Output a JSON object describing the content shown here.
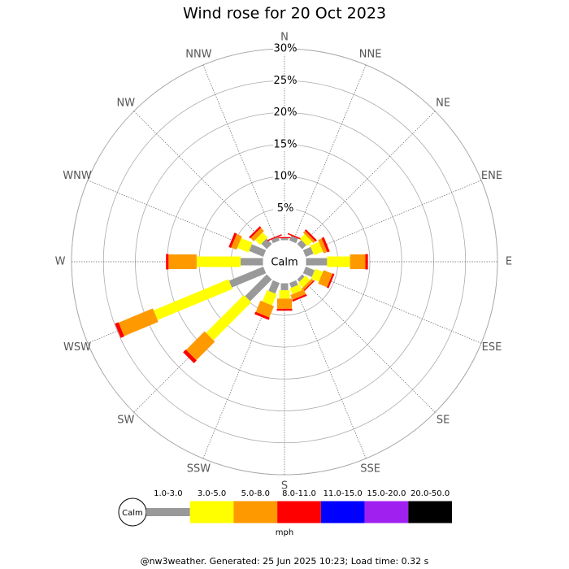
{
  "chart_data": {
    "type": "windrose",
    "title": "Wind rose for 20 Oct 2023",
    "categories": [
      "N",
      "NNE",
      "NE",
      "ENE",
      "E",
      "ESE",
      "SE",
      "SSE",
      "S",
      "SSW",
      "SW",
      "WSW",
      "W",
      "WNW",
      "NW",
      "NNW"
    ],
    "center_label": "Calm",
    "unit_label": "mph",
    "footer": "@nw3weather. Generated: 25 Jun 2025 10:23; Load time: 0.32 s",
    "ylim": [
      0,
      30
    ],
    "yticks": [
      {
        "value": 5,
        "label": "5%"
      },
      {
        "value": 10,
        "label": "10%"
      },
      {
        "value": 15,
        "label": "15%"
      },
      {
        "value": 20,
        "label": "20%"
      },
      {
        "value": 25,
        "label": "25%"
      },
      {
        "value": 30,
        "label": "30%"
      }
    ],
    "series": [
      {
        "name": "1.0-3.0",
        "color": "#999999",
        "values": [
          0.3,
          0.8,
          0.9,
          1.3,
          3.3,
          1.5,
          0.5,
          0.8,
          1.1,
          1.8,
          4.8,
          5.8,
          3.5,
          2.4,
          1.2,
          0.6
        ]
      },
      {
        "name": "3.0-5.0",
        "color": "#ffff00",
        "values": [
          0,
          0,
          1.0,
          1.5,
          3.6,
          1.3,
          1.0,
          1.0,
          1.3,
          1.9,
          8.4,
          12.7,
          6.9,
          1.9,
          1.1,
          0
        ]
      },
      {
        "name": "5.0-8.0",
        "color": "#ff9900",
        "values": [
          0,
          0,
          0.4,
          0.6,
          2.4,
          1.5,
          0.4,
          0.8,
          1.6,
          1.9,
          4.1,
          5.8,
          4.4,
          0.9,
          0.7,
          0
        ]
      },
      {
        "name": "8.0-11.0",
        "color": "#ff0000",
        "values": [
          0.2,
          0.2,
          0.3,
          0.4,
          0.4,
          0.3,
          0.2,
          0.3,
          0.3,
          0.4,
          0.6,
          0.6,
          0.4,
          0.4,
          0.3,
          0.2
        ]
      },
      {
        "name": "11.0-15.0",
        "color": "#0000ff",
        "values": [
          0,
          0,
          0,
          0,
          0,
          0,
          0,
          0,
          0,
          0,
          0,
          0,
          0,
          0,
          0,
          0
        ]
      },
      {
        "name": "15.0-20.0",
        "color": "#a020f0",
        "values": [
          0,
          0,
          0,
          0,
          0,
          0,
          0,
          0,
          0,
          0,
          0,
          0,
          0,
          0,
          0,
          0
        ]
      },
      {
        "name": "20.0-50.0",
        "color": "#000000",
        "values": [
          0,
          0,
          0,
          0,
          0,
          0,
          0,
          0,
          0,
          0,
          0,
          0,
          0,
          0,
          0,
          0
        ]
      }
    ]
  }
}
